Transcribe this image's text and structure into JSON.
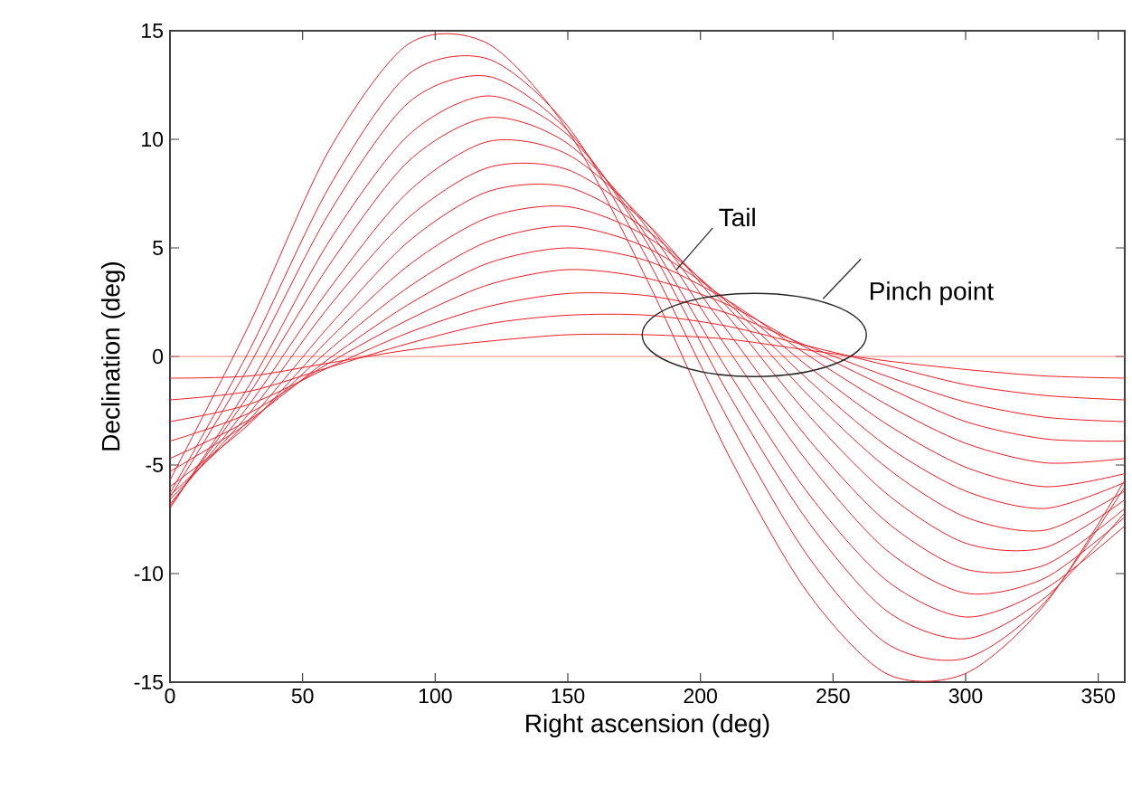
{
  "chart_data": {
    "type": "line",
    "xlabel": "Right ascension (deg)",
    "ylabel": "Declination (deg)",
    "x": [
      0,
      30,
      60,
      90,
      120,
      150,
      180,
      210,
      240,
      270,
      300,
      330,
      360
    ],
    "series": [
      {
        "color": "#ec1c24",
        "values": [
          -1.0,
          -0.9,
          -0.3,
          0.3,
          0.7,
          1.0,
          1.0,
          0.8,
          0.3,
          -0.2,
          -0.6,
          -0.9,
          -1.0
        ]
      },
      {
        "color": "#ec1c24",
        "values": [
          -2.0,
          -1.6,
          -0.5,
          0.6,
          1.5,
          1.9,
          1.9,
          1.4,
          0.5,
          -0.4,
          -1.3,
          -1.8,
          -2.0
        ]
      },
      {
        "color": "#ec1c24",
        "values": [
          -3.0,
          -2.2,
          -0.5,
          1.1,
          2.3,
          2.9,
          2.8,
          2.0,
          0.5,
          -0.9,
          -2.1,
          -2.8,
          -3.0
        ]
      },
      {
        "color": "#ec1c24",
        "values": [
          -3.9,
          -2.6,
          -0.3,
          1.7,
          3.3,
          4.0,
          3.6,
          2.4,
          0.4,
          -1.4,
          -3.0,
          -3.8,
          -3.9
        ]
      },
      {
        "color": "#ec1c24",
        "values": [
          -4.7,
          -2.9,
          -0.1,
          2.4,
          4.3,
          5.0,
          4.4,
          2.6,
          0.1,
          -2.2,
          -4.0,
          -4.9,
          -4.7
        ]
      },
      {
        "color": "#ec1c24",
        "values": [
          -5.3,
          -3.0,
          0.3,
          3.2,
          5.3,
          6.0,
          5.0,
          2.6,
          -0.4,
          -3.1,
          -5.1,
          -6.0,
          -5.4
        ]
      },
      {
        "color": "#ec1c24",
        "values": [
          -6.0,
          -3.1,
          0.8,
          4.2,
          6.4,
          6.9,
          5.5,
          2.5,
          -1.0,
          -4.1,
          -6.2,
          -7.0,
          -5.8
        ]
      },
      {
        "color": "#ec1c24",
        "values": [
          -6.4,
          -2.9,
          1.4,
          5.3,
          7.6,
          7.8,
          5.8,
          2.3,
          -1.7,
          -5.1,
          -7.4,
          -8.0,
          -6.2
        ]
      },
      {
        "color": "#ec1c24",
        "values": [
          -6.6,
          -2.6,
          2.3,
          6.4,
          8.7,
          8.6,
          6.1,
          1.9,
          -2.6,
          -6.3,
          -8.6,
          -8.8,
          -6.6
        ]
      },
      {
        "color": "#ec1c24",
        "values": [
          -6.8,
          -2.2,
          3.1,
          7.6,
          9.9,
          9.3,
          6.1,
          1.2,
          -3.7,
          -7.6,
          -9.8,
          -9.6,
          -7.0
        ]
      },
      {
        "color": "#ec1c24",
        "values": [
          -6.9,
          -1.7,
          4.2,
          9.0,
          11.0,
          9.8,
          5.9,
          0.4,
          -4.8,
          -8.9,
          -10.9,
          -10.2,
          -7.4
        ]
      },
      {
        "color": "#ec1c24",
        "values": [
          -7.0,
          -1.3,
          5.3,
          10.2,
          12.0,
          10.2,
          5.5,
          -0.6,
          -6.2,
          -10.3,
          -12.0,
          -10.7,
          -7.8
        ]
      },
      {
        "color": "#ec1c24",
        "values": [
          -6.5,
          -0.4,
          6.6,
          11.7,
          12.9,
          10.4,
          5.2,
          -1.6,
          -7.5,
          -11.7,
          -13.0,
          -11.1,
          -7.2
        ]
      },
      {
        "color": "#ec1c24",
        "values": [
          -6.3,
          0.3,
          7.8,
          13.0,
          13.7,
          10.6,
          4.5,
          -2.8,
          -9.1,
          -13.2,
          -13.9,
          -11.3,
          -6.0
        ]
      },
      {
        "color": "#ec1c24",
        "values": [
          -5.7,
          1.5,
          9.5,
          14.4,
          14.4,
          10.4,
          3.5,
          -4.4,
          -10.8,
          -14.6,
          -14.6,
          -11.4,
          -5.7
        ]
      }
    ],
    "ref_lines": [
      {
        "axis": "y",
        "value": 0,
        "color": "#f08080"
      }
    ],
    "annotations": [
      {
        "text": "Tail",
        "x": 191,
        "y": 4
      },
      "Pinch point"
    ],
    "xlim": [
      0,
      360
    ],
    "xticks": [
      0,
      50,
      100,
      150,
      200,
      250,
      300,
      350
    ],
    "ylim": [
      -15,
      15
    ],
    "yticks": [
      -15,
      -10,
      -5,
      0,
      5,
      10,
      15
    ],
    "marker": "none",
    "line_style": "solid"
  }
}
